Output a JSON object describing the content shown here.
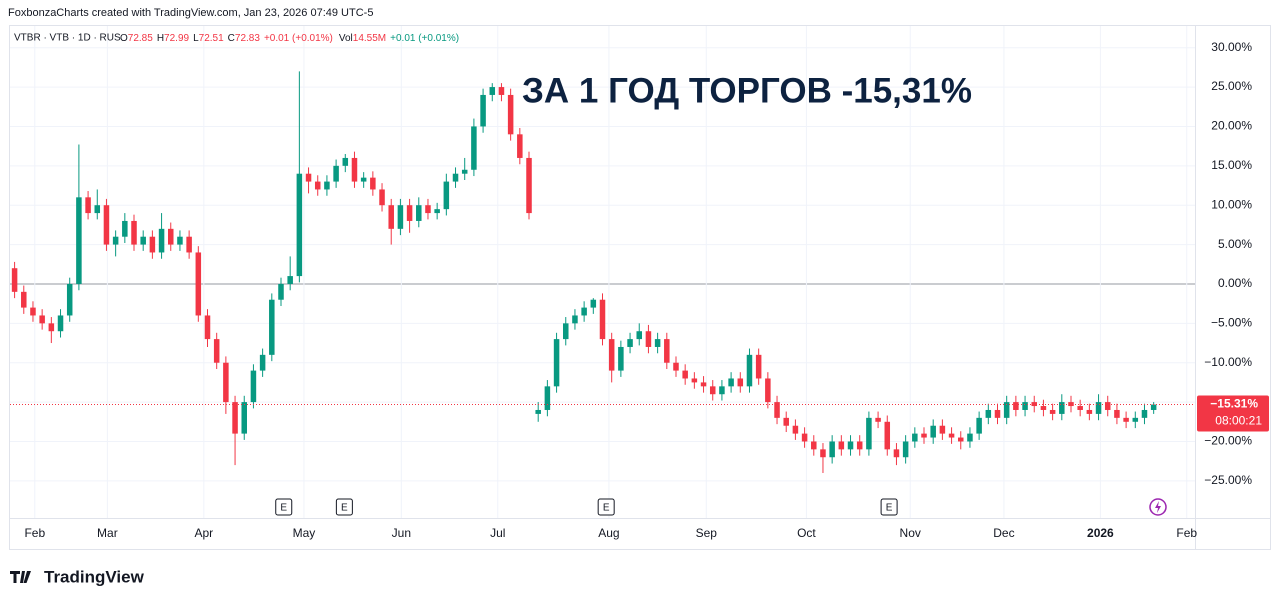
{
  "header": {
    "credit": "FoxbonzaCharts created with TradingView.com, Jan 23, 2026 07:49 UTC-5",
    "symbol": "VTBR · VTB · 1D · RUS",
    "stats": [
      {
        "key": "O",
        "value": "72.85"
      },
      {
        "key": "H",
        "value": "72.99"
      },
      {
        "key": "L",
        "value": "72.51"
      },
      {
        "key": "C",
        "value": "72.83"
      }
    ],
    "change": "+0.01 (+0.01%)",
    "volume_key": "Vol",
    "volume": "14.55M",
    "volume_change": "+0.01 (+0.01%)"
  },
  "footer": {
    "logo": "TradingView"
  },
  "chart_data": {
    "type": "candlestick",
    "title": "ЗА 1 ГОД ТОРГОВ -15,31%",
    "up_color": "#089981",
    "down_color": "#f23645",
    "grid": true,
    "last_label": "−15.31%",
    "countdown": "08:00:21",
    "ylim": [
      -28.7,
      32.5
    ],
    "yticks": [
      {
        "value": 30,
        "label": "30.00%"
      },
      {
        "value": 25,
        "label": "25.00%"
      },
      {
        "value": 20,
        "label": "20.00%"
      },
      {
        "value": 15,
        "label": "15.00%"
      },
      {
        "value": 10,
        "label": "10.00%"
      },
      {
        "value": 5,
        "label": "5.00%"
      },
      {
        "value": 0,
        "label": "0.00%"
      },
      {
        "value": -5,
        "label": "−5.00%"
      },
      {
        "value": -10,
        "label": "−10.00%"
      },
      {
        "value": -15,
        "label": "−15.00%"
      },
      {
        "value": -20,
        "label": "−20.00%"
      },
      {
        "value": -25,
        "label": "−25.00%"
      }
    ],
    "xlim": [
      -0.5,
      128.5
    ],
    "xticks": [
      {
        "value": 2.2,
        "label": "Feb"
      },
      {
        "value": 10.1,
        "label": "Mar"
      },
      {
        "value": 20.6,
        "label": "Apr"
      },
      {
        "value": 31.5,
        "label": "May"
      },
      {
        "value": 42.1,
        "label": "Jun"
      },
      {
        "value": 52.6,
        "label": "Jul"
      },
      {
        "value": 64.7,
        "label": "Aug"
      },
      {
        "value": 75.3,
        "label": "Sep"
      },
      {
        "value": 86.2,
        "label": "Oct"
      },
      {
        "value": 97.5,
        "label": "Nov"
      },
      {
        "value": 107.7,
        "label": "Dec"
      },
      {
        "value": 118.2,
        "label": "2026"
      },
      {
        "value": 127.6,
        "label": "Feb"
      }
    ],
    "events": [
      {
        "x": 29.3,
        "label": "E"
      },
      {
        "x": 35.9,
        "label": "E"
      },
      {
        "x": 64.4,
        "label": "E"
      },
      {
        "x": 95.2,
        "label": "E"
      }
    ],
    "open": [
      2,
      -1,
      -3,
      -4,
      -5,
      -6,
      -4,
      0,
      11,
      9,
      10,
      5,
      6,
      8,
      5,
      6,
      4,
      7,
      5,
      6,
      4,
      -4,
      -7,
      -10,
      -15,
      -19,
      -15,
      -11,
      -9,
      -2,
      0,
      1,
      14,
      13,
      12,
      13,
      15,
      16,
      13,
      13.5,
      12,
      10,
      7,
      10,
      8,
      10,
      9,
      9.5,
      13,
      14,
      14.5,
      20,
      24,
      25,
      24,
      19,
      16,
      -16.5,
      -16,
      -13,
      -7,
      -5,
      -4,
      -3,
      -2,
      -7,
      -11,
      -8,
      -7,
      -6,
      -8,
      -7,
      -10,
      -11,
      -12,
      -12.5,
      -13,
      -14,
      -13,
      -12,
      -13,
      -9,
      -12,
      -15,
      -17,
      -18,
      -19,
      -20,
      -21,
      -22,
      -20,
      -21,
      -20,
      -21,
      -17,
      -17.5,
      -21,
      -22,
      -20,
      -19,
      -19.5,
      -18,
      -19,
      -19.5,
      -20,
      -19,
      -17,
      -16,
      -17,
      -15,
      -16,
      -15,
      -15.5,
      -16,
      -16.5,
      -15,
      -15.5,
      -16,
      -16.5,
      -15,
      -16,
      -17,
      -17.5,
      -17,
      -16
    ],
    "high": [
      2.8,
      -0.2,
      -2.2,
      -3.2,
      -4.2,
      -3.2,
      0.8,
      17.7,
      11.8,
      12,
      10.8,
      6.8,
      9,
      8.8,
      6.8,
      6.8,
      9,
      7.8,
      6.8,
      6.8,
      4.8,
      -3.2,
      -6.2,
      -9.2,
      -14.2,
      -14.2,
      -10.2,
      -8.2,
      -1.2,
      0.8,
      3.5,
      27,
      14.8,
      13.8,
      13.8,
      15.8,
      16.5,
      16.8,
      14.2,
      14.3,
      12.8,
      10.8,
      10.8,
      10.8,
      11,
      10.8,
      10.3,
      14,
      14.8,
      16,
      21,
      24.8,
      25.5,
      25.5,
      24.8,
      19.8,
      16.8,
      -15,
      -12.2,
      -6.2,
      -4.2,
      -3.2,
      -2.2,
      -1.8,
      -1.2,
      -6.2,
      -7.2,
      -6.2,
      -5,
      -5.2,
      -6.2,
      -6.2,
      -9.2,
      -10.2,
      -11.2,
      -11.7,
      -12.2,
      -12.2,
      -11.2,
      -11.2,
      -8.2,
      -8.2,
      -11.2,
      -14.2,
      -16.2,
      -17.2,
      -18.2,
      -19.2,
      -20.2,
      -19.2,
      -19.2,
      -19.2,
      -19.2,
      -16.2,
      -16.2,
      -16.7,
      -20.2,
      -19.2,
      -18.2,
      -18.2,
      -17.2,
      -17.2,
      -18.2,
      -18.7,
      -18.2,
      -16.2,
      -15.2,
      -15.2,
      -14.2,
      -14.2,
      -14.2,
      -14.2,
      -14.7,
      -15.2,
      -14,
      -14.2,
      -14.7,
      -15.2,
      -14,
      -14.2,
      -15.2,
      -16.2,
      -16.2,
      -15.2,
      -15
    ],
    "low": [
      -1.8,
      -3.8,
      -4.8,
      -5.8,
      -7.5,
      -6.8,
      -4.8,
      -0.8,
      8.2,
      8.2,
      4.2,
      3.5,
      5.2,
      4.2,
      4.2,
      3.2,
      3.2,
      4.2,
      4.2,
      3.2,
      -4.8,
      -8,
      -10.8,
      -16.5,
      -23,
      -19.8,
      -15.8,
      -11.8,
      -9.8,
      -2.8,
      -0.8,
      0.2,
      11.5,
      11.2,
      11.2,
      12.2,
      14.2,
      12.2,
      12.2,
      11.2,
      9.2,
      5,
      6.2,
      6.5,
      7.2,
      8.2,
      8.2,
      8.7,
      12.2,
      13.2,
      13.7,
      19.2,
      23.2,
      23.2,
      18.2,
      15.2,
      8.2,
      -17.5,
      -16.8,
      -13.8,
      -7.8,
      -5.8,
      -4.8,
      -3.8,
      -7.8,
      -12.5,
      -11.8,
      -8.8,
      -7.8,
      -8.8,
      -8.8,
      -10.8,
      -11.8,
      -12.8,
      -13.3,
      -13.8,
      -14.8,
      -14.8,
      -13.8,
      -13.8,
      -13.8,
      -12.8,
      -15.8,
      -17.8,
      -18.8,
      -19.8,
      -20.8,
      -21.8,
      -24,
      -22.8,
      -21.8,
      -21.8,
      -21.8,
      -21.8,
      -18.3,
      -21.8,
      -23,
      -22.8,
      -20.8,
      -20.3,
      -20.3,
      -19.8,
      -20.3,
      -21,
      -20.8,
      -19.8,
      -17.8,
      -17.8,
      -17.8,
      -16.8,
      -16.8,
      -16.3,
      -16.8,
      -17.3,
      -17.3,
      -16.3,
      -16.8,
      -17.3,
      -17.3,
      -16.8,
      -17.8,
      -18.3,
      -18.3,
      -17.8,
      -16.5
    ],
    "close": [
      -1,
      -3,
      -4,
      -5,
      -6,
      -4,
      0,
      11,
      9,
      10,
      5,
      6,
      8,
      5,
      6,
      4,
      7,
      5,
      6,
      4,
      -4,
      -7,
      -10,
      -15,
      -19,
      -15,
      -11,
      -9,
      -2,
      0,
      1,
      14,
      13,
      12,
      13,
      15,
      16,
      13,
      13.5,
      12,
      10,
      7,
      10,
      8,
      10,
      9,
      9.5,
      13,
      14,
      14.5,
      20,
      24,
      25,
      24,
      19,
      16,
      9,
      -16,
      -13,
      -7,
      -5,
      -4,
      -3,
      -2,
      -7,
      -11,
      -8,
      -7,
      -6,
      -8,
      -7,
      -10,
      -11,
      -12,
      -12.5,
      -13,
      -14,
      -13,
      -12,
      -13,
      -9,
      -12,
      -15,
      -17,
      -18,
      -19,
      -20,
      -21,
      -22,
      -20,
      -21,
      -20,
      -21,
      -17,
      -17.5,
      -21,
      -22,
      -20,
      -19,
      -19.5,
      -18,
      -19,
      -19.5,
      -20,
      -19,
      -17,
      -16,
      -17,
      -15,
      -16,
      -15,
      -15.5,
      -16,
      -16.5,
      -15,
      -15.5,
      -16,
      -16.5,
      -15,
      -16,
      -17,
      -17.5,
      -17,
      -16,
      -15.31
    ]
  }
}
